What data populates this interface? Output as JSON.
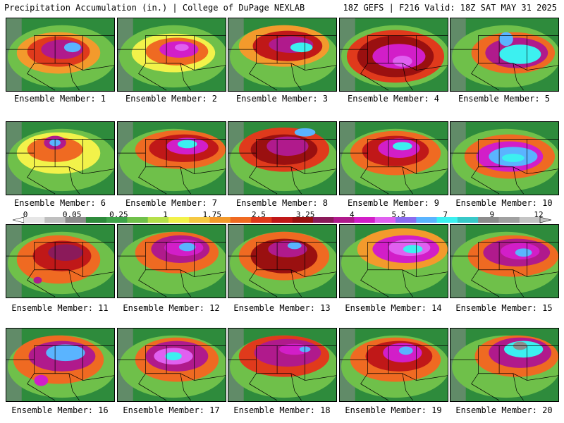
{
  "header": {
    "left": "Precipitation Accumulation (in.) | College of DuPage NEXLAB",
    "right": "18Z GEFS | F216 Valid: 18Z SAT MAY 31 2025"
  },
  "colorbar": {
    "labels": [
      "0",
      "0.05",
      "0.25",
      "1",
      "1.75",
      "2.5",
      "3.25",
      "4",
      "5.5",
      "7",
      "9",
      "12"
    ],
    "colors": [
      "#e6e6e6",
      "#bfbfbf",
      "#8c8c8c",
      "#2e8b3c",
      "#3fa34a",
      "#6fc04a",
      "#b5e04a",
      "#f2f24a",
      "#f5c842",
      "#f39a2c",
      "#ef6a22",
      "#e03a1c",
      "#c01818",
      "#9a1010",
      "#8b1a5a",
      "#b01a8c",
      "#d21ec8",
      "#e060f0",
      "#8a6cf0",
      "#5ab4ff",
      "#3cf0f0",
      "#38c8c8",
      "#8c8c8c",
      "#a0a0a0",
      "#c4c4c4"
    ]
  },
  "panels": [
    {
      "caption": "Ensemble Member: 1"
    },
    {
      "caption": "Ensemble Member: 2"
    },
    {
      "caption": "Ensemble Member: 3"
    },
    {
      "caption": "Ensemble Member: 4"
    },
    {
      "caption": "Ensemble Member: 5"
    },
    {
      "caption": "Ensemble Member: 6"
    },
    {
      "caption": "Ensemble Member: 7"
    },
    {
      "caption": "Ensemble Member: 8"
    },
    {
      "caption": "Ensemble Member: 9"
    },
    {
      "caption": "Ensemble Member: 10"
    },
    {
      "caption": "Ensemble Member: 11"
    },
    {
      "caption": "Ensemble Member: 12"
    },
    {
      "caption": "Ensemble Member: 13"
    },
    {
      "caption": "Ensemble Member: 14"
    },
    {
      "caption": "Ensemble Member: 15"
    },
    {
      "caption": "Ensemble Member: 16"
    },
    {
      "caption": "Ensemble Member: 17"
    },
    {
      "caption": "Ensemble Member: 18"
    },
    {
      "caption": "Ensemble Member: 19"
    },
    {
      "caption": "Ensemble Member: 20"
    }
  ]
}
